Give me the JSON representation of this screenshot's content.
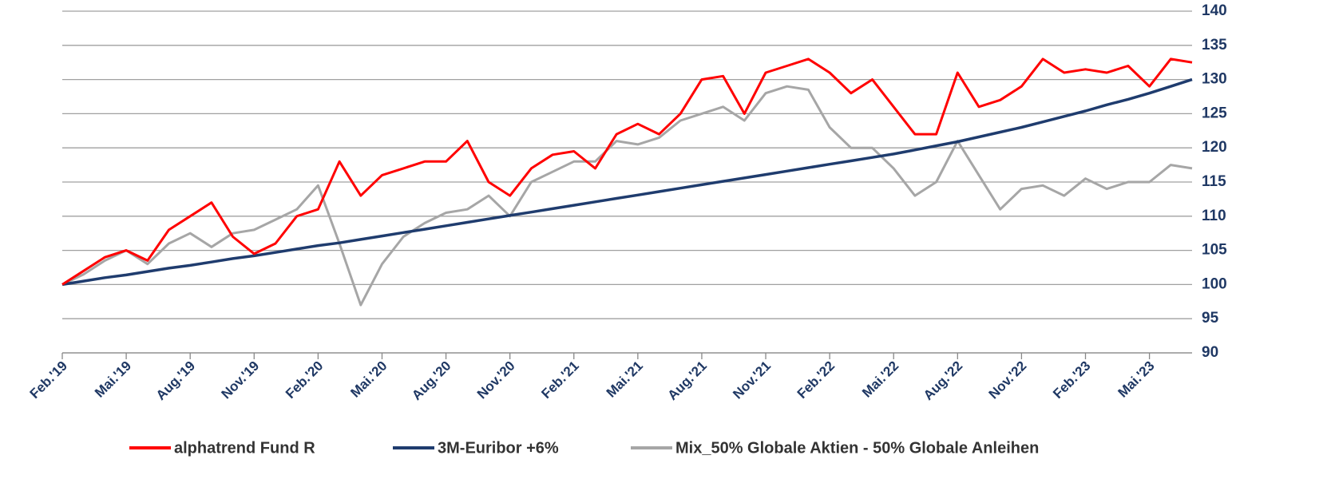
{
  "chart_data": {
    "type": "line",
    "categories": [
      "Feb.'19",
      null,
      null,
      "Mai.'19",
      null,
      null,
      "Aug.'19",
      null,
      null,
      "Nov.'19",
      null,
      null,
      "Feb.'20",
      null,
      null,
      "Mai.'20",
      null,
      null,
      "Aug.'20",
      null,
      null,
      "Nov.'20",
      null,
      null,
      "Feb.'21",
      null,
      null,
      "Mai.'21",
      null,
      null,
      "Aug.'21",
      null,
      null,
      "Nov.'21",
      null,
      null,
      "Feb.'22",
      null,
      null,
      "Mai.'22",
      null,
      null,
      "Aug.'22",
      null,
      null,
      "Nov.'22",
      null,
      null,
      "Feb.'23",
      null,
      null,
      "Mai.'23",
      null,
      null
    ],
    "series": [
      {
        "name": "alphatrend Fund R",
        "color": "#ff0000",
        "values": [
          100,
          102,
          104,
          105,
          103.5,
          108,
          110,
          112,
          107,
          104.5,
          106,
          110,
          111,
          118,
          113,
          116,
          117,
          118,
          118,
          121,
          115,
          113,
          117,
          119,
          119.5,
          117,
          122,
          123.5,
          122,
          125,
          130,
          130.5,
          125,
          131,
          132,
          133,
          131,
          128,
          130,
          126,
          122,
          122,
          131,
          126,
          127,
          129,
          133,
          131,
          131.5,
          131,
          132,
          129,
          133,
          132.5
        ]
      },
      {
        "name": "3M-Euribor +6%",
        "color": "#1f3c6e",
        "values": [
          100,
          100.5,
          101,
          101.4,
          101.9,
          102.4,
          102.8,
          103.3,
          103.8,
          104.2,
          104.7,
          105.2,
          105.7,
          106.1,
          106.6,
          107.1,
          107.6,
          108.1,
          108.6,
          109.1,
          109.6,
          110.1,
          110.6,
          111.1,
          111.6,
          112.1,
          112.6,
          113.1,
          113.6,
          114.1,
          114.6,
          115.1,
          115.6,
          116.1,
          116.6,
          117.1,
          117.6,
          118.1,
          118.6,
          119.1,
          119.7,
          120.3,
          120.9,
          121.6,
          122.3,
          123.0,
          123.8,
          124.6,
          125.4,
          126.3,
          127.1,
          128.0,
          129.0,
          130.0
        ]
      },
      {
        "name": "Mix_50% Globale Aktien - 50% Globale Anleihen",
        "color": "#a6a6a6",
        "values": [
          100,
          101.5,
          103.5,
          105,
          103,
          106,
          107.5,
          105.5,
          107.5,
          108,
          109.5,
          111,
          114.5,
          106,
          97,
          103,
          107,
          109,
          110.5,
          111,
          113,
          110,
          115,
          116.5,
          118,
          118,
          121,
          120.5,
          121.5,
          124,
          125,
          126,
          124,
          128,
          129,
          128.5,
          123,
          120,
          120,
          117,
          113,
          115,
          121,
          116,
          111,
          114,
          114.5,
          113,
          115.5,
          114,
          115,
          115,
          117.5,
          117
        ]
      }
    ],
    "ylim": [
      90,
      140
    ],
    "yticks": [
      90,
      95,
      100,
      105,
      110,
      115,
      120,
      125,
      130,
      135,
      140
    ],
    "grid": true
  }
}
